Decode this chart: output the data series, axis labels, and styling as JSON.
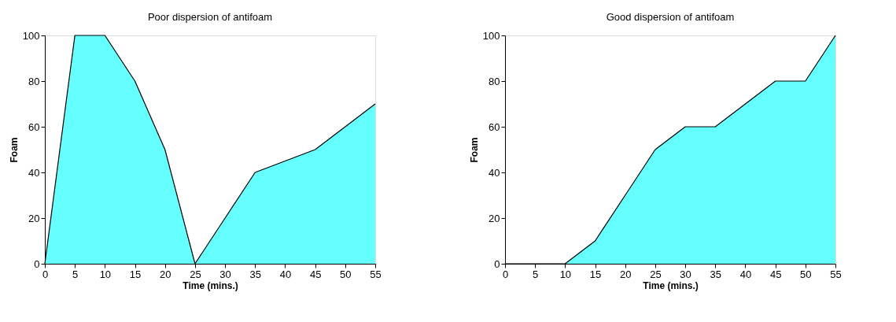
{
  "chart_data": [
    {
      "type": "area",
      "title": "Poor dispersion of antifoam",
      "xlabel": "Time (mins.)",
      "ylabel": "Foam",
      "categories": [
        "0",
        "5",
        "10",
        "15",
        "20",
        "25",
        "30",
        "35",
        "40",
        "45",
        "50",
        "55"
      ],
      "series": [
        {
          "color": "#66ffff",
          "values": [
            0,
            100,
            100,
            80,
            50,
            0,
            20,
            40,
            45,
            50,
            60,
            70
          ]
        }
      ],
      "ylim": [
        0,
        100
      ],
      "yticks": [
        0,
        20,
        40,
        60,
        80,
        100
      ],
      "grid": false
    },
    {
      "type": "area",
      "title": "Good dispersion of antifoam",
      "xlabel": "Time (mins.)",
      "ylabel": "Foam",
      "categories": [
        "0",
        "5",
        "10",
        "15",
        "20",
        "25",
        "30",
        "35",
        "40",
        "45",
        "50",
        "55"
      ],
      "series": [
        {
          "color": "#66ffff",
          "values": [
            0,
            0,
            0,
            10,
            30,
            50,
            60,
            60,
            70,
            80,
            80,
            100
          ]
        }
      ],
      "ylim": [
        0,
        100
      ],
      "yticks": [
        0,
        20,
        40,
        60,
        80,
        100
      ],
      "grid": false
    }
  ]
}
